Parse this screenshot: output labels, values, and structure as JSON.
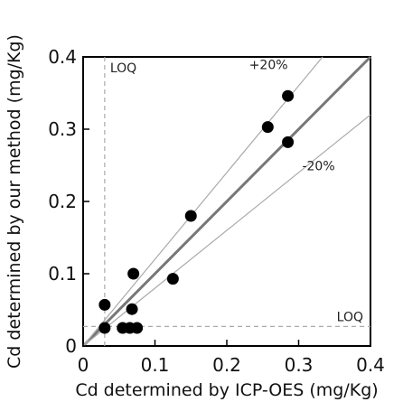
{
  "chart_data": {
    "type": "scatter",
    "title": "",
    "xlabel": "Cd determined by ICP-OES (mg/Kg)",
    "ylabel": "Cd determined by our method (mg/Kg)",
    "xlim": [
      0,
      0.4
    ],
    "ylim": [
      0,
      0.4
    ],
    "x_ticks": [
      0,
      0.1,
      0.2,
      0.3,
      0.4
    ],
    "x_tick_labels": [
      "0",
      "0.1",
      "0.2",
      "0.3",
      "0.4"
    ],
    "y_ticks": [
      0,
      0.1,
      0.2,
      0.3,
      0.4
    ],
    "y_tick_labels": [
      "0",
      "0.1",
      "0.2",
      "0.3",
      "0.4"
    ],
    "grid": false,
    "points": [
      {
        "x": 0.03,
        "y": 0.057
      },
      {
        "x": 0.03,
        "y": 0.025
      },
      {
        "x": 0.055,
        "y": 0.025
      },
      {
        "x": 0.065,
        "y": 0.025
      },
      {
        "x": 0.075,
        "y": 0.025
      },
      {
        "x": 0.068,
        "y": 0.051
      },
      {
        "x": 0.07,
        "y": 0.1
      },
      {
        "x": 0.125,
        "y": 0.093
      },
      {
        "x": 0.15,
        "y": 0.18
      },
      {
        "x": 0.257,
        "y": 0.303
      },
      {
        "x": 0.285,
        "y": 0.346
      },
      {
        "x": 0.285,
        "y": 0.282
      }
    ],
    "reference_lines": [
      {
        "label": "",
        "slope": 1.0
      },
      {
        "label": "+20%",
        "slope": 1.2
      },
      {
        "label": "-20%",
        "slope": 0.8
      }
    ],
    "loq": {
      "x": 0.03,
      "y": 0.027,
      "label": "LOQ"
    }
  }
}
